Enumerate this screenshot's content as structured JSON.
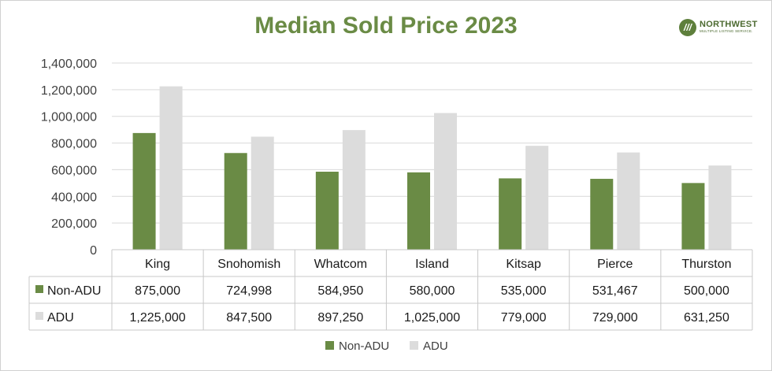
{
  "header": {
    "logo_name": "NORTHWEST",
    "logo_subtitle": "MULTIPLE LISTING SERVICE."
  },
  "colors": {
    "non_adu": "#6a8b45",
    "adu": "#dcdcdc",
    "title": "#6a8b45",
    "grid": "#d9d9d9"
  },
  "chart_data": {
    "type": "bar",
    "title": "Median Sold Price 2023",
    "categories": [
      "King",
      "Snohomish",
      "Whatcom",
      "Island",
      "Kitsap",
      "Pierce",
      "Thurston"
    ],
    "series": [
      {
        "name": "Non-ADU",
        "values": [
          875000,
          724998,
          584950,
          580000,
          535000,
          531467,
          500000
        ],
        "labels": [
          "875,000",
          "724,998",
          "584,950",
          "580,000",
          "535,000",
          "531,467",
          "500,000"
        ]
      },
      {
        "name": "ADU",
        "values": [
          1225000,
          847500,
          897250,
          1025000,
          779000,
          729000,
          631250
        ],
        "labels": [
          "1,225,000",
          "847,500",
          "897,250",
          "1,025,000",
          "779,000",
          "729,000",
          "631,250"
        ]
      }
    ],
    "yticks": [
      "0",
      "200,000",
      "400,000",
      "600,000",
      "800,000",
      "1,000,000",
      "1,200,000",
      "1,400,000"
    ],
    "ylim": [
      0,
      1400000
    ],
    "grid": true,
    "legend": "bottom",
    "data_table": true
  }
}
